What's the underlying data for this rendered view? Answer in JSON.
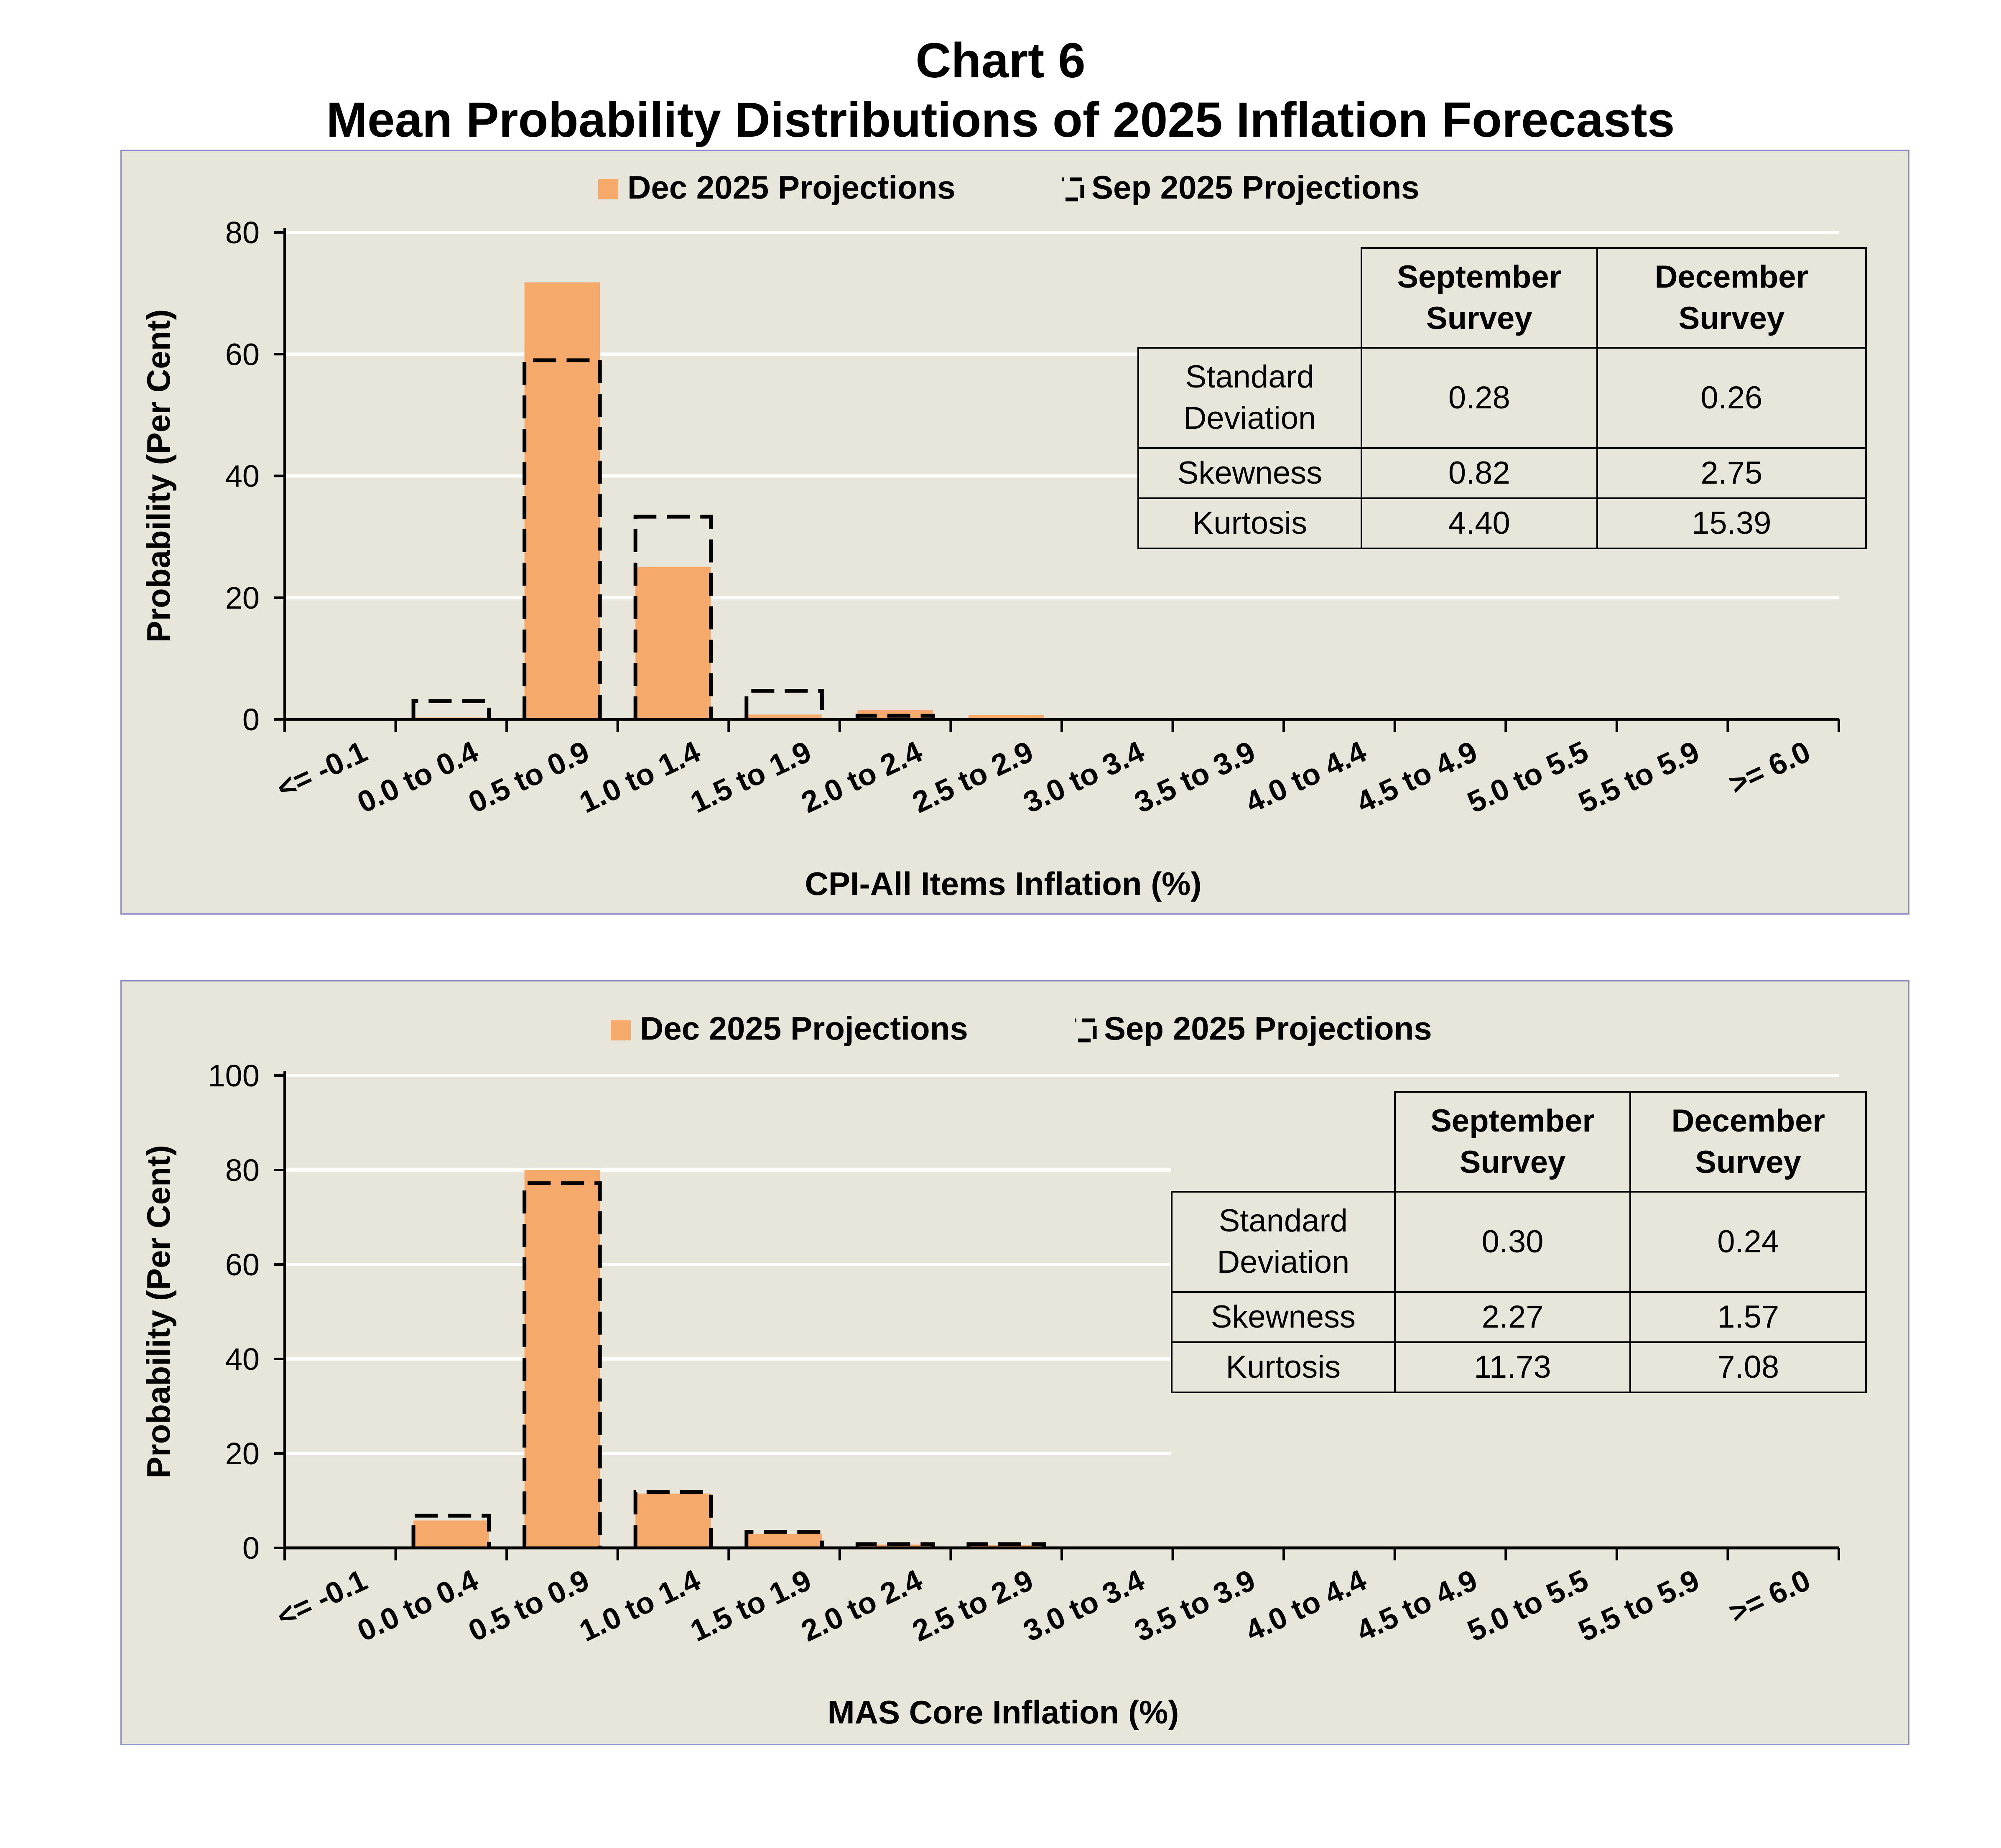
{
  "title": {
    "line1": "Chart 6",
    "line2": "Mean Probability Distributions of 2025 Inflation Forecasts"
  },
  "colors": {
    "dec_bar": "#f5a96b",
    "panel_bg": "#e8e6db",
    "panel_border": "#8c8cc8",
    "gridline": "#ffffff",
    "axis": "#000000"
  },
  "chart_data": [
    {
      "type": "bar",
      "title": "",
      "xlabel": "CPI-All Items Inflation (%)",
      "ylabel": "Probability (Per Cent)",
      "ylim": [
        0,
        80
      ],
      "yticks": [
        0,
        20,
        40,
        60,
        80
      ],
      "categories": [
        "<= -0.1",
        "0.0 to 0.4",
        "0.5 to 0.9",
        "1.0 to 1.4",
        "1.5 to 1.9",
        "2.0 to 2.4",
        "2.5 to 2.9",
        "3.0 to 3.4",
        "3.5 to 3.9",
        "4.0 to 4.4",
        "4.5 to 4.9",
        "5.0 to 5.5",
        "5.5 to 5.9",
        ">= 6.0"
      ],
      "series": [
        {
          "name": "Dec 2025 Projections",
          "style": "filled",
          "values": [
            0,
            0.3,
            71.8,
            25.0,
            0.8,
            1.5,
            0.7,
            0,
            0,
            0,
            0,
            0,
            0,
            0
          ]
        },
        {
          "name": "Sep 2025 Projections",
          "style": "dashed-outline",
          "values": [
            0,
            3.0,
            59.0,
            33.3,
            4.7,
            0.6,
            0,
            0,
            0,
            0,
            0,
            0,
            0,
            0
          ]
        }
      ],
      "legend": "top-center",
      "stats_table": {
        "headers": [
          "",
          "September Survey",
          "December Survey"
        ],
        "header_lines": [
          [
            "September",
            "Survey"
          ],
          [
            "December",
            "Survey"
          ]
        ],
        "rows": [
          {
            "label_lines": [
              "Standard",
              "Deviation"
            ],
            "september": "0.28",
            "december": "0.26"
          },
          {
            "label_lines": [
              "Skewness"
            ],
            "september": "0.82",
            "december": "2.75"
          },
          {
            "label_lines": [
              "Kurtosis"
            ],
            "september": "4.40",
            "december": "15.39"
          }
        ]
      }
    },
    {
      "type": "bar",
      "title": "",
      "xlabel": "MAS Core Inflation (%)",
      "ylabel": "Probability (Per Cent)",
      "ylim": [
        0,
        100
      ],
      "yticks": [
        0,
        20,
        40,
        60,
        80,
        100
      ],
      "categories": [
        "<= -0.1",
        "0.0 to 0.4",
        "0.5 to 0.9",
        "1.0 to 1.4",
        "1.5 to 1.9",
        "2.0 to 2.4",
        "2.5 to 2.9",
        "3.0 to 3.4",
        "3.5 to 3.9",
        "4.0 to 4.4",
        "4.5 to 4.9",
        "5.0 to 5.5",
        "5.5 to 5.9",
        ">= 6.0"
      ],
      "series": [
        {
          "name": "Dec 2025 Projections",
          "style": "filled",
          "values": [
            0,
            5.8,
            80.0,
            11.5,
            3.0,
            0.7,
            0.6,
            0,
            0,
            0,
            0,
            0,
            0,
            0
          ]
        },
        {
          "name": "Sep 2025 Projections",
          "style": "dashed-outline",
          "values": [
            0,
            6.8,
            77.2,
            11.8,
            3.4,
            0.8,
            0.8,
            0,
            0,
            0,
            0,
            0,
            0,
            0
          ]
        }
      ],
      "legend": "top-center",
      "stats_table": {
        "headers": [
          "",
          "September Survey",
          "December Survey"
        ],
        "header_lines": [
          [
            "September",
            "Survey"
          ],
          [
            "December",
            "Survey"
          ]
        ],
        "rows": [
          {
            "label_lines": [
              "Standard",
              "Deviation"
            ],
            "september": "0.30",
            "december": "0.24"
          },
          {
            "label_lines": [
              "Skewness"
            ],
            "september": "2.27",
            "december": "1.57"
          },
          {
            "label_lines": [
              "Kurtosis"
            ],
            "september": "11.73",
            "december": "7.08"
          }
        ]
      }
    }
  ]
}
